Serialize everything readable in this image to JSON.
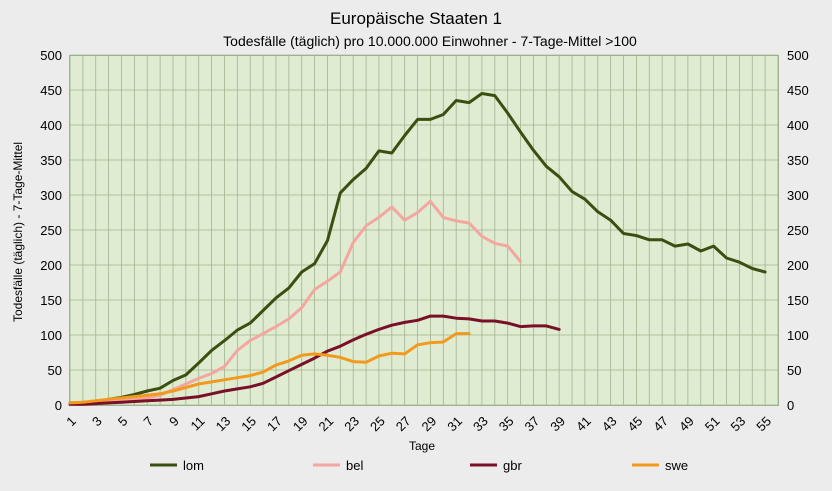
{
  "chart_data": {
    "type": "line",
    "title": "Europäische Staaten 1",
    "subtitle": "Todesfälle (täglich) pro 10.000.000 Einwohner - 7-Tage-Mittel >100",
    "xlabel": "Tage",
    "ylabel": "Todesfälle (täglich) - 7-Tage-Mittel",
    "ylim": [
      0,
      500
    ],
    "yticks": [
      0,
      50,
      100,
      150,
      200,
      250,
      300,
      350,
      400,
      450,
      500
    ],
    "xlim": [
      1,
      56
    ],
    "xticks": [
      1,
      3,
      5,
      7,
      9,
      11,
      13,
      15,
      17,
      19,
      21,
      23,
      25,
      27,
      29,
      31,
      33,
      35,
      37,
      39,
      41,
      43,
      45,
      47,
      49,
      51,
      53,
      55
    ],
    "grid": true,
    "legend_position": "bottom",
    "series": [
      {
        "name": "lom",
        "color": "#3a4f10",
        "values": [
          3,
          3,
          5,
          8,
          11,
          15,
          20,
          24,
          35,
          43,
          60,
          78,
          92,
          107,
          117,
          135,
          153,
          167,
          190,
          202,
          235,
          303,
          322,
          338,
          363,
          360,
          385,
          408,
          408,
          415,
          435,
          432,
          445,
          442,
          417,
          390,
          364,
          341,
          326,
          305,
          294,
          276,
          264,
          245,
          242,
          236,
          236,
          227,
          230,
          220,
          227,
          210,
          204,
          195,
          190
        ]
      },
      {
        "name": "bel",
        "color": "#f4a6a0",
        "values": [
          2,
          2,
          3,
          4,
          6,
          8,
          10,
          14,
          22,
          30,
          38,
          45,
          55,
          78,
          92,
          102,
          112,
          123,
          139,
          165,
          177,
          190,
          232,
          256,
          268,
          283,
          264,
          275,
          291,
          268,
          263,
          260,
          241,
          231,
          227,
          205
        ]
      },
      {
        "name": "gbr",
        "color": "#7a0f28",
        "values": [
          1,
          1,
          2,
          3,
          4,
          5,
          6,
          7,
          8,
          10,
          12,
          16,
          20,
          23,
          26,
          31,
          40,
          49,
          58,
          67,
          77,
          84,
          93,
          101,
          108,
          114,
          118,
          121,
          127,
          127,
          124,
          123,
          120,
          120,
          117,
          112,
          113,
          113,
          108
        ]
      },
      {
        "name": "swe",
        "color": "#f39a1e",
        "values": [
          3,
          4,
          6,
          8,
          10,
          12,
          14,
          16,
          20,
          25,
          30,
          33,
          36,
          39,
          42,
          47,
          57,
          63,
          71,
          73,
          71,
          68,
          62,
          61,
          70,
          74,
          73,
          86,
          89,
          90,
          102,
          102
        ]
      }
    ]
  }
}
